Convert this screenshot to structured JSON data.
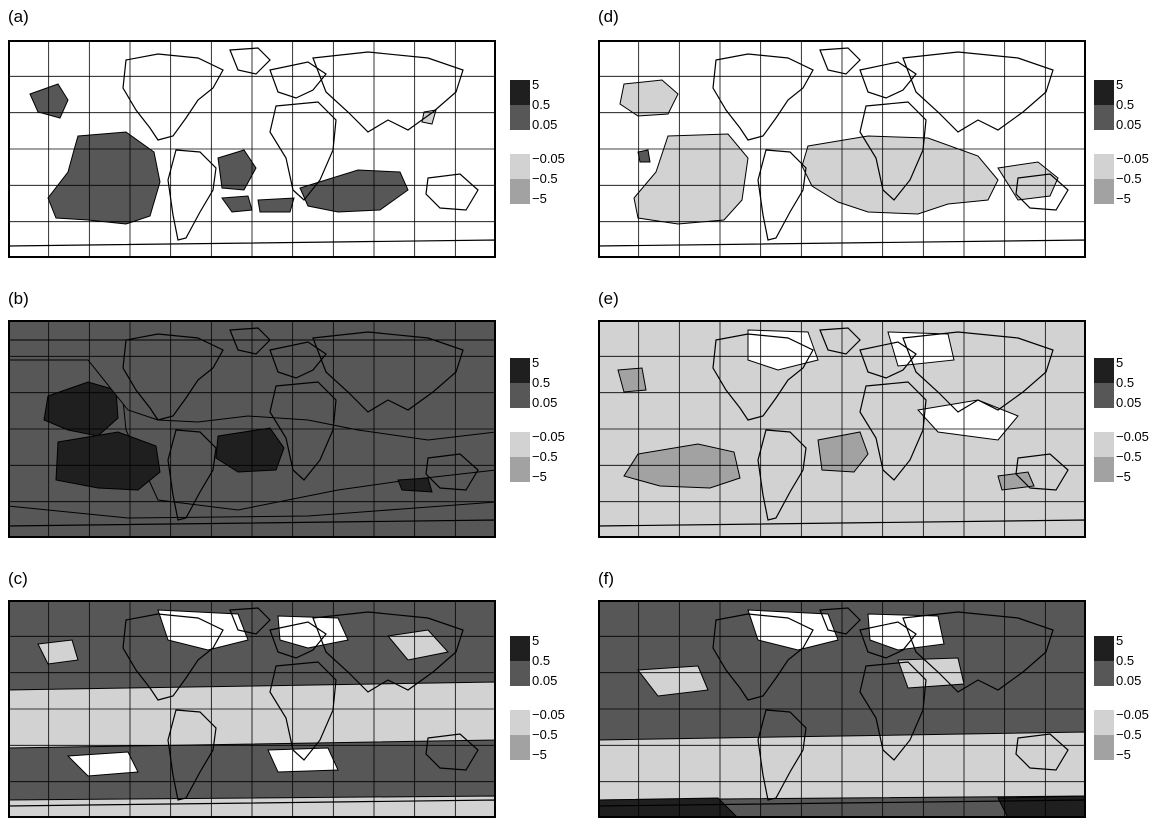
{
  "panels": [
    {
      "id": "a",
      "label": "(a)"
    },
    {
      "id": "b",
      "label": "(b)"
    },
    {
      "id": "c",
      "label": "(c)"
    },
    {
      "id": "d",
      "label": "(d)"
    },
    {
      "id": "e",
      "label": "(e)"
    },
    {
      "id": "f",
      "label": "(f)"
    }
  ],
  "legend": {
    "levels": [
      "5",
      "0.5",
      "0.05",
      "−0.05",
      "−0.5",
      "−5"
    ],
    "colors": {
      "pos_high": "#1f1f1f",
      "pos_mid": "#575757",
      "neg_mid": "#d2d2d2",
      "neg_high": "#a2a2a2",
      "zero": "#ffffff"
    }
  },
  "chart_data": {
    "type": "contour-map",
    "grid": true,
    "panel_backgrounds": {
      "a": "zero",
      "b": "pos_mid",
      "c": "pos_mid",
      "d": "zero",
      "e": "neg_mid",
      "f": "pos_mid"
    }
  }
}
